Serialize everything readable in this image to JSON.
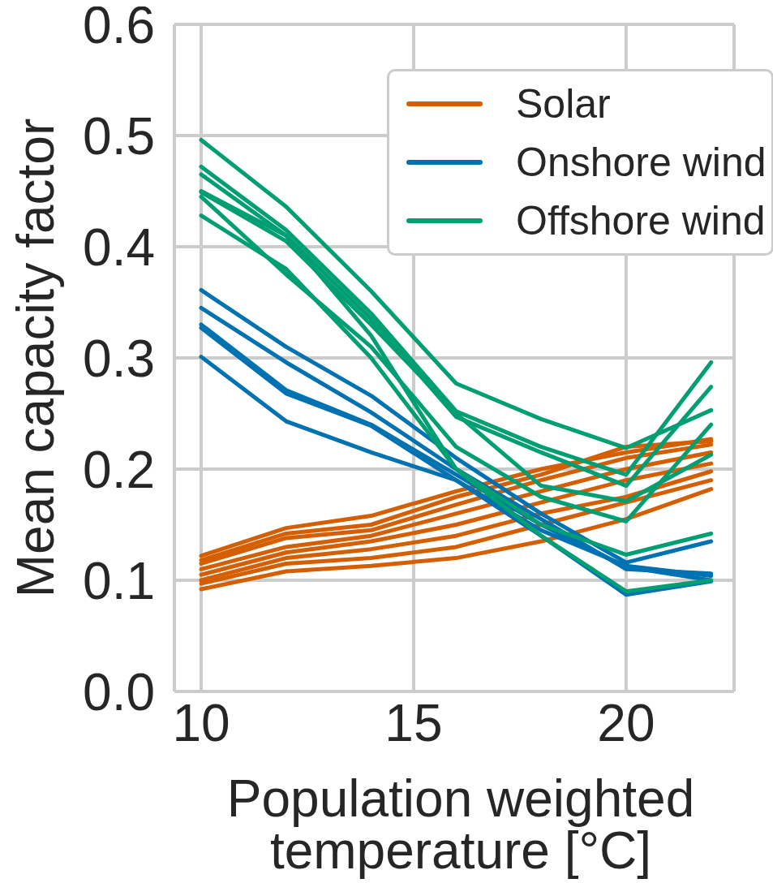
{
  "chart_data": {
    "type": "line",
    "xlabel": "Population weighted temperature [°C]",
    "ylabel": "Mean capacity factor",
    "x": [
      10,
      12,
      14,
      16,
      18,
      20,
      22
    ],
    "xlim": [
      9.37,
      22.54
    ],
    "xticks": [
      10,
      15,
      20
    ],
    "ylim": [
      0,
      0.6
    ],
    "yticks": [
      {
        "value": 0,
        "label": "0.0"
      },
      {
        "value": 0.1,
        "label": "0.1"
      },
      {
        "value": 0.2,
        "label": "0.2"
      },
      {
        "value": 0.3,
        "label": "0.3"
      },
      {
        "value": 0.4,
        "label": "0.4"
      },
      {
        "value": 0.5,
        "label": "0.5"
      },
      {
        "value": 0.6,
        "label": "0.6"
      }
    ],
    "grid": true,
    "legend": "top right",
    "marker": "none",
    "line_style": "solid",
    "series": [
      {
        "name": "Solar",
        "color": "#d55e00",
        "values": [
          0.122,
          0.147,
          0.158,
          0.18,
          0.2,
          0.215,
          0.227
        ]
      },
      {
        "color": "#d55e00",
        "values": [
          0.118,
          0.142,
          0.15,
          0.175,
          0.195,
          0.22,
          0.225
        ]
      },
      {
        "color": "#d55e00",
        "values": [
          0.115,
          0.138,
          0.145,
          0.168,
          0.19,
          0.21,
          0.222
        ]
      },
      {
        "color": "#d55e00",
        "values": [
          0.11,
          0.13,
          0.14,
          0.16,
          0.18,
          0.2,
          0.215
        ]
      },
      {
        "color": "#d55e00",
        "values": [
          0.105,
          0.125,
          0.135,
          0.15,
          0.17,
          0.19,
          0.205
        ]
      },
      {
        "color": "#d55e00",
        "values": [
          0.1,
          0.12,
          0.128,
          0.14,
          0.16,
          0.175,
          0.198
        ]
      },
      {
        "color": "#d55e00",
        "values": [
          0.097,
          0.115,
          0.12,
          0.13,
          0.15,
          0.17,
          0.19
        ]
      },
      {
        "color": "#d55e00",
        "values": [
          0.092,
          0.108,
          0.113,
          0.12,
          0.135,
          0.155,
          0.182
        ]
      },
      {
        "name": "Onshore wind",
        "color": "#0072b2",
        "values": [
          0.361,
          0.31,
          0.266,
          0.21,
          0.16,
          0.116,
          0.135
        ]
      },
      {
        "color": "#0072b2",
        "values": [
          0.345,
          0.296,
          0.251,
          0.2,
          0.155,
          0.11,
          0.106
        ]
      },
      {
        "color": "#0072b2",
        "values": [
          0.33,
          0.271,
          0.24,
          0.195,
          0.15,
          0.112,
          0.1
        ]
      },
      {
        "color": "#0072b2",
        "values": [
          0.327,
          0.268,
          0.239,
          0.19,
          0.145,
          0.113,
          0.104
        ]
      },
      {
        "color": "#0072b2",
        "values": [
          0.301,
          0.243,
          0.215,
          0.19,
          0.14,
          0.087,
          0.099
        ]
      },
      {
        "name": "Offshore wind",
        "color": "#009e73",
        "values": [
          0.496,
          0.436,
          0.36,
          0.277,
          0.245,
          0.219,
          0.253
        ]
      },
      {
        "color": "#009e73",
        "values": [
          0.472,
          0.415,
          0.34,
          0.252,
          0.22,
          0.195,
          0.296
        ]
      },
      {
        "color": "#009e73",
        "values": [
          0.465,
          0.41,
          0.335,
          0.247,
          0.215,
          0.185,
          0.274
        ]
      },
      {
        "color": "#009e73",
        "values": [
          0.449,
          0.405,
          0.33,
          0.25,
          0.185,
          0.171,
          0.213
        ]
      },
      {
        "color": "#009e73",
        "values": [
          0.445,
          0.375,
          0.31,
          0.22,
          0.175,
          0.153,
          0.24
        ]
      },
      {
        "color": "#009e73",
        "values": [
          0.428,
          0.38,
          0.3,
          0.2,
          0.15,
          0.123,
          0.142
        ]
      },
      {
        "color": "#009e73",
        "values": [
          0.45,
          0.41,
          0.32,
          0.2,
          0.14,
          0.09,
          0.1
        ]
      }
    ]
  }
}
